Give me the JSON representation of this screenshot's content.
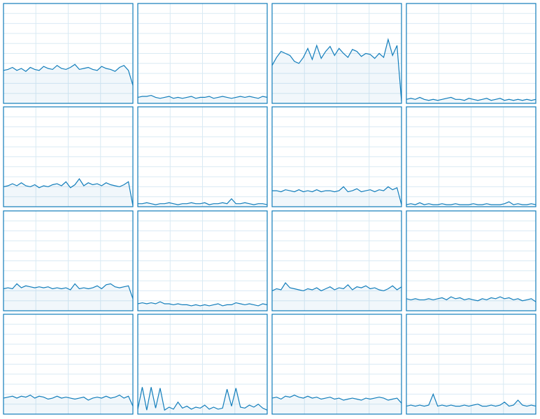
{
  "chart_data": [
    {
      "type": "area",
      "color": "#117dbb",
      "ylim": [
        0,
        100
      ],
      "values": [
        33,
        34,
        36,
        33,
        35,
        32,
        36,
        34,
        33,
        37,
        35,
        34,
        38,
        35,
        34,
        36,
        39,
        34,
        35,
        36,
        34,
        33,
        37,
        35,
        34,
        32,
        36,
        38,
        33,
        18
      ]
    },
    {
      "type": "area",
      "color": "#117dbb",
      "ylim": [
        0,
        100
      ],
      "values": [
        6,
        7,
        7,
        8,
        6,
        5,
        6,
        7,
        5,
        6,
        5,
        6,
        7,
        5,
        6,
        6,
        7,
        5,
        6,
        7,
        6,
        5,
        6,
        7,
        6,
        7,
        6,
        5,
        7,
        6
      ]
    },
    {
      "type": "area",
      "color": "#117dbb",
      "ylim": [
        0,
        100
      ],
      "values": [
        38,
        46,
        52,
        50,
        48,
        42,
        40,
        46,
        55,
        44,
        58,
        45,
        52,
        57,
        48,
        55,
        50,
        46,
        54,
        52,
        47,
        50,
        49,
        45,
        50,
        46,
        64,
        48,
        58,
        2
      ]
    },
    {
      "type": "area",
      "color": "#117dbb",
      "ylim": [
        0,
        100
      ],
      "values": [
        4,
        5,
        4,
        6,
        4,
        3,
        4,
        3,
        4,
        5,
        6,
        4,
        4,
        3,
        5,
        4,
        3,
        4,
        5,
        3,
        4,
        5,
        3,
        4,
        3,
        4,
        3,
        4,
        3,
        4
      ]
    },
    {
      "type": "area",
      "color": "#117dbb",
      "ylim": [
        0,
        100
      ],
      "values": [
        20,
        21,
        23,
        21,
        24,
        21,
        20,
        22,
        19,
        21,
        20,
        22,
        23,
        21,
        25,
        19,
        22,
        28,
        21,
        24,
        22,
        23,
        21,
        24,
        22,
        21,
        20,
        22,
        25,
        1
      ]
    },
    {
      "type": "area",
      "color": "#117dbb",
      "ylim": [
        0,
        100
      ],
      "values": [
        3,
        3,
        4,
        3,
        2,
        3,
        3,
        4,
        3,
        2,
        3,
        3,
        4,
        3,
        3,
        4,
        2,
        3,
        3,
        4,
        3,
        8,
        3,
        3,
        4,
        3,
        2,
        3,
        3,
        2
      ]
    },
    {
      "type": "area",
      "color": "#117dbb",
      "ylim": [
        0,
        100
      ],
      "values": [
        16,
        16,
        15,
        17,
        16,
        15,
        17,
        15,
        16,
        15,
        17,
        15,
        16,
        16,
        15,
        16,
        20,
        15,
        16,
        18,
        15,
        16,
        17,
        15,
        17,
        16,
        20,
        17,
        19,
        2
      ]
    },
    {
      "type": "area",
      "color": "#117dbb",
      "ylim": [
        0,
        100
      ],
      "values": [
        2,
        3,
        2,
        4,
        2,
        3,
        2,
        2,
        3,
        2,
        2,
        3,
        2,
        2,
        2,
        3,
        2,
        2,
        3,
        2,
        2,
        2,
        3,
        5,
        2,
        3,
        2,
        2,
        3,
        2
      ]
    },
    {
      "type": "area",
      "color": "#117dbb",
      "ylim": [
        0,
        100
      ],
      "values": [
        22,
        23,
        22,
        27,
        23,
        25,
        24,
        23,
        24,
        23,
        24,
        22,
        23,
        22,
        23,
        21,
        27,
        22,
        23,
        22,
        23,
        25,
        22,
        26,
        27,
        24,
        23,
        24,
        25,
        12
      ]
    },
    {
      "type": "area",
      "color": "#117dbb",
      "ylim": [
        0,
        100
      ],
      "values": [
        7,
        8,
        7,
        8,
        7,
        9,
        7,
        7,
        6,
        7,
        6,
        6,
        5,
        6,
        5,
        6,
        5,
        6,
        7,
        5,
        6,
        6,
        8,
        7,
        6,
        7,
        6,
        5,
        7,
        6
      ]
    },
    {
      "type": "area",
      "color": "#117dbb",
      "ylim": [
        0,
        100
      ],
      "values": [
        20,
        22,
        21,
        28,
        23,
        22,
        21,
        20,
        22,
        21,
        23,
        20,
        22,
        24,
        21,
        23,
        22,
        26,
        21,
        24,
        23,
        25,
        22,
        23,
        21,
        20,
        22,
        25,
        21,
        24
      ]
    },
    {
      "type": "area",
      "color": "#117dbb",
      "ylim": [
        0,
        100
      ],
      "values": [
        12,
        11,
        12,
        11,
        11,
        12,
        11,
        12,
        13,
        11,
        14,
        12,
        13,
        11,
        12,
        11,
        10,
        12,
        11,
        13,
        12,
        14,
        12,
        13,
        11,
        12,
        10,
        11,
        12,
        9
      ]
    },
    {
      "type": "area",
      "color": "#117dbb",
      "ylim": [
        0,
        100
      ],
      "values": [
        16,
        17,
        18,
        16,
        18,
        17,
        19,
        16,
        18,
        17,
        15,
        16,
        18,
        16,
        17,
        16,
        15,
        16,
        17,
        14,
        16,
        17,
        16,
        18,
        16,
        17,
        19,
        16,
        18,
        8
      ]
    },
    {
      "type": "area",
      "color": "#117dbb",
      "ylim": [
        0,
        100
      ],
      "values": [
        5,
        27,
        4,
        27,
        6,
        26,
        4,
        7,
        5,
        12,
        6,
        8,
        5,
        7,
        6,
        9,
        5,
        7,
        5,
        6,
        25,
        8,
        26,
        7,
        6,
        9,
        7,
        10,
        6,
        4
      ]
    },
    {
      "type": "area",
      "color": "#117dbb",
      "ylim": [
        0,
        100
      ],
      "values": [
        16,
        17,
        15,
        18,
        17,
        19,
        17,
        16,
        18,
        16,
        17,
        15,
        16,
        17,
        15,
        16,
        14,
        15,
        16,
        15,
        14,
        16,
        15,
        16,
        17,
        16,
        14,
        15,
        16,
        11
      ]
    },
    {
      "type": "area",
      "color": "#117dbb",
      "ylim": [
        0,
        100
      ],
      "values": [
        8,
        9,
        8,
        9,
        8,
        9,
        20,
        8,
        9,
        8,
        9,
        8,
        8,
        9,
        8,
        9,
        10,
        8,
        8,
        9,
        8,
        9,
        12,
        8,
        9,
        14,
        9,
        8,
        9,
        8
      ]
    }
  ]
}
